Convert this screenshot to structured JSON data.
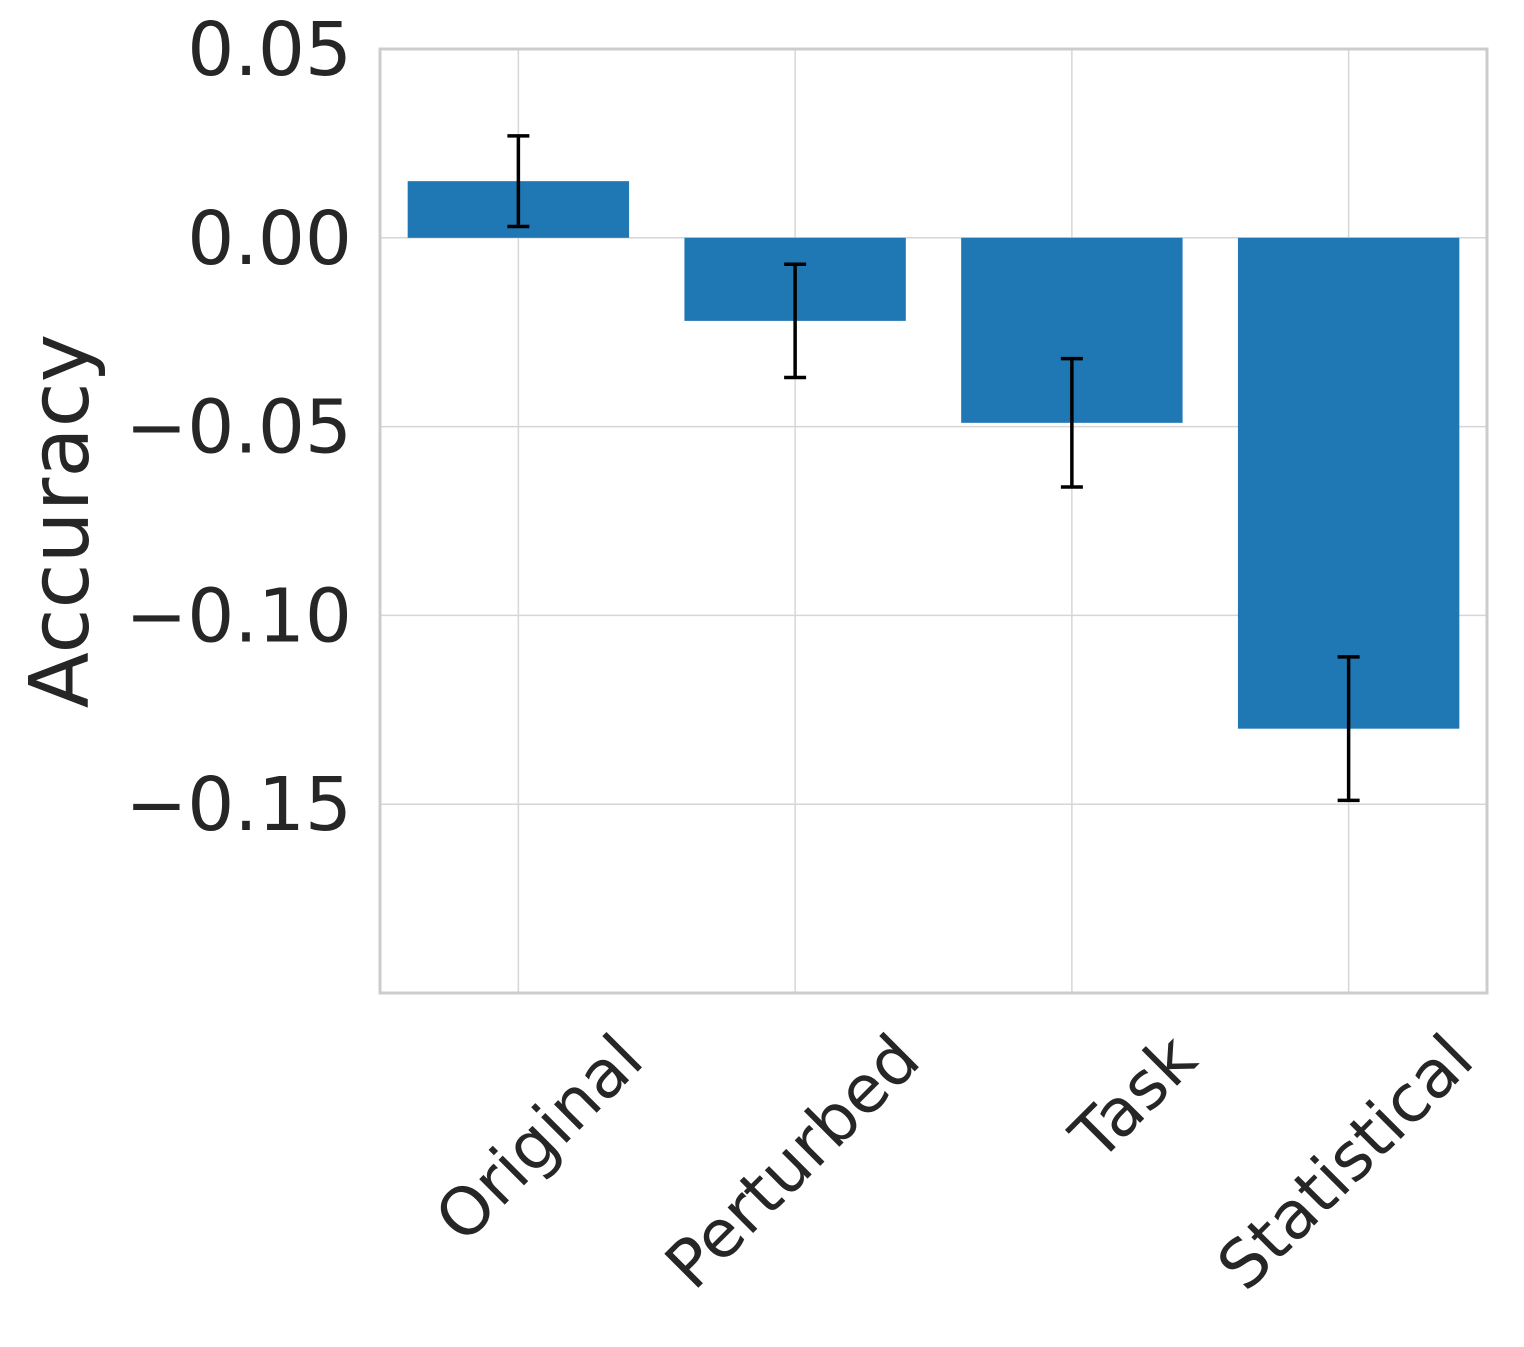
{
  "chart_data": {
    "type": "bar",
    "title": "",
    "xlabel": "",
    "ylabel": "Accuracy",
    "categories": [
      "Original",
      "Perturbed",
      "Task",
      "Statistical"
    ],
    "values": [
      0.015,
      -0.022,
      -0.049,
      -0.13
    ],
    "errors": [
      0.012,
      0.015,
      0.017,
      0.019
    ],
    "ylim": [
      -0.2,
      0.05
    ],
    "yticks": [
      0.05,
      0.0,
      -0.05,
      -0.1,
      -0.15
    ],
    "ytick_labels": [
      "0.05",
      "0.00",
      "−0.05",
      "−0.10",
      "−0.15"
    ],
    "grid": true,
    "bar_color": "#1f77b4",
    "error_color": "#000000"
  }
}
